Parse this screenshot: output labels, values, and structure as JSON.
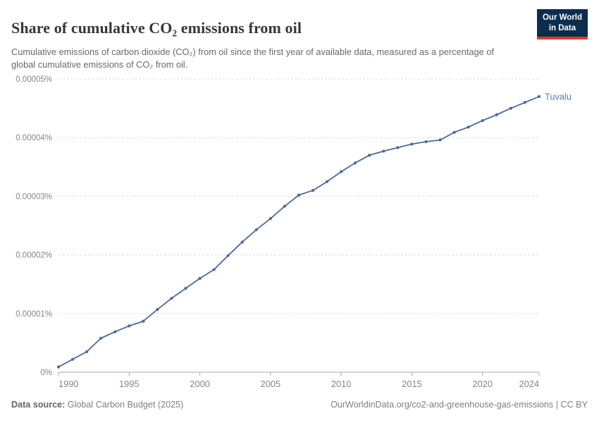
{
  "header": {
    "title": "Share of cumulative CO₂ emissions from oil",
    "subtitle": "Cumulative emissions of carbon dioxide (CO₂) from oil since the first year of available data, measured as a percentage of global cumulative emissions of CO₂ from oil.",
    "logo": {
      "line1": "Our World",
      "line2": "in Data"
    }
  },
  "footer": {
    "data_source_label": "Data source:",
    "data_source_value": " Global Carbon Budget (2025)",
    "attribution": "OurWorldinData.org/co2-and-greenhouse-gas-emissions | CC BY"
  },
  "colors": {
    "series_line": "#4c6a9c",
    "series_label": "#5b7ab0",
    "axis_line": "#a8a8a8",
    "gridline": "#dcdcdc",
    "tick_label": "#858585",
    "logo_bg": "#0c2d4e",
    "logo_red": "#d7402c"
  },
  "chart_data": {
    "type": "line",
    "title": "Share of cumulative CO₂ emissions from oil",
    "xlabel": "",
    "ylabel": "",
    "grid": "horizontal-dashed",
    "legend": "inline-end-label",
    "xlim": [
      1990,
      2024
    ],
    "ylim_percent": [
      0,
      5e-05
    ],
    "x_ticks": [
      1990,
      1995,
      2000,
      2005,
      2010,
      2015,
      2020,
      2024
    ],
    "y_ticks_percent": [
      0,
      1e-05,
      2e-05,
      3e-05,
      4e-05,
      5e-05
    ],
    "y_tick_labels": [
      "0%",
      "0.00001%",
      "0.00002%",
      "0.00003%",
      "0.00004%",
      "0.00005%"
    ],
    "series": [
      {
        "name": "Tuvalu",
        "color": "#4c6a9c",
        "x": [
          1990,
          1991,
          1992,
          1993,
          1994,
          1995,
          1996,
          1997,
          1998,
          1999,
          2000,
          2001,
          2002,
          2003,
          2004,
          2005,
          2006,
          2007,
          2008,
          2009,
          2010,
          2011,
          2012,
          2013,
          2014,
          2015,
          2016,
          2017,
          2018,
          2019,
          2020,
          2021,
          2022,
          2023,
          2024
        ],
        "values_percent": [
          9e-07,
          2.2e-06,
          3.5e-06,
          5.8e-06,
          6.9e-06,
          7.9e-06,
          8.7e-06,
          1.07e-05,
          1.26e-05,
          1.43e-05,
          1.6e-05,
          1.75e-05,
          1.99e-05,
          2.22e-05,
          2.43e-05,
          2.62e-05,
          2.83e-05,
          3.02e-05,
          3.1e-05,
          3.25e-05,
          3.42e-05,
          3.57e-05,
          3.7e-05,
          3.77e-05,
          3.83e-05,
          3.89e-05,
          3.93e-05,
          3.96e-05,
          4.09e-05,
          4.18e-05,
          4.29e-05,
          4.39e-05,
          4.5e-05,
          4.6e-05,
          4.7e-05
        ]
      }
    ]
  }
}
